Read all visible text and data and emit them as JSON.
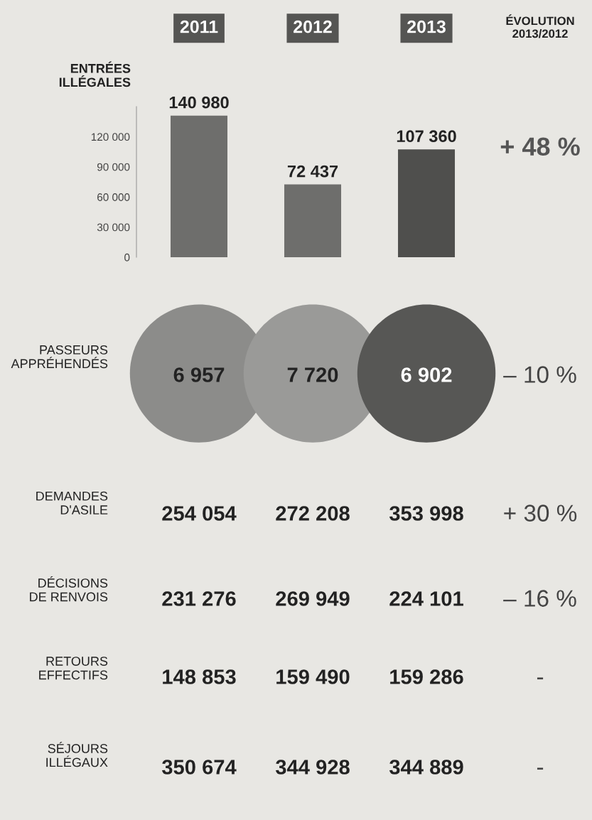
{
  "chart_data": [
    {
      "type": "bar",
      "title": "ENTRÉES\nILLÉGALES",
      "categories": [
        "2011",
        "2012",
        "2013"
      ],
      "values": [
        140980,
        72437,
        107360
      ],
      "colors": [
        "#6e6e6c",
        "#6e6e6c",
        "#4f4f4d"
      ],
      "data_labels": true,
      "ylim": [
        0,
        150000
      ],
      "yticks": [
        {
          "value": 0,
          "label": "0"
        },
        {
          "value": 30000,
          "label": "30 000"
        },
        {
          "value": 60000,
          "label": "60 000"
        },
        {
          "value": 90000,
          "label": "90 000"
        },
        {
          "value": 120000,
          "label": "120 000"
        }
      ],
      "annotations": [
        "ÉVOLUTION\n2013/2012",
        "+ 48 %"
      ]
    },
    {
      "type": "other",
      "title": "PASSEURS\nAPPRÉHENDÉS",
      "categories": [
        null,
        null,
        null
      ],
      "values": [
        6957,
        7720,
        6902
      ],
      "value_labels": [
        "6 957",
        "7 720",
        "6 902"
      ],
      "colors": [
        "#8c8c8a",
        "#9a9a98",
        "#575755"
      ],
      "annotations": [
        "– 10 %"
      ]
    },
    {
      "type": "other",
      "title": "DEMANDES\nD'ASILE",
      "categories": [
        null,
        null,
        null
      ],
      "values": [
        254054,
        272208,
        353998
      ],
      "value_labels": [
        "254 054",
        "272 208",
        "353 998"
      ],
      "annotations": [
        "+ 30 %"
      ]
    },
    {
      "type": "other",
      "title": "DÉCISIONS\nDE RENVOIS",
      "categories": [
        null,
        null,
        null
      ],
      "values": [
        231276,
        269949,
        224101
      ],
      "value_labels": [
        "231 276",
        "269 949",
        "224 101"
      ],
      "annotations": [
        "– 16 %"
      ]
    },
    {
      "type": "other",
      "title": "RETOURS\nEFFECTIFS",
      "categories": [
        null,
        null,
        null
      ],
      "values": [
        148853,
        159490,
        159286
      ],
      "value_labels": [
        "148 853",
        "159 490",
        "159 286"
      ],
      "annotations": [
        "-"
      ]
    },
    {
      "type": "other",
      "title": "SÉJOURS\nILLÉGAUX",
      "categories": [
        null,
        null,
        null
      ],
      "values": [
        350674,
        344928,
        344889
      ],
      "value_labels": [
        "350 674",
        "344 928",
        "344 889"
      ],
      "annotations": [
        "-"
      ]
    }
  ]
}
